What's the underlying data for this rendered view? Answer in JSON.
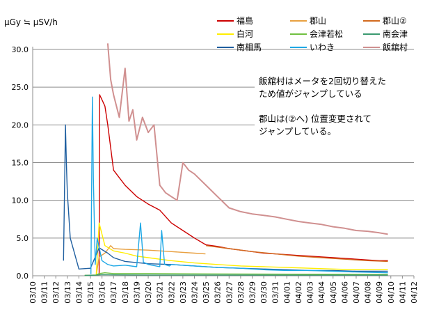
{
  "chart_data": {
    "type": "line",
    "ylabel": "μGy ≒ μSV/h",
    "ylim": [
      0,
      30
    ],
    "yticks": [
      "0.0",
      "5.0",
      "10.0",
      "15.0",
      "20.0",
      "25.0",
      "30.0"
    ],
    "xlim": [
      "2011-03-10",
      "2011-04-12"
    ],
    "xticks": [
      "03/10",
      "03/11",
      "03/12",
      "03/13",
      "03/14",
      "03/15",
      "03/16",
      "03/17",
      "03/18",
      "03/19",
      "03/20",
      "03/21",
      "03/22",
      "03/23",
      "03/24",
      "03/25",
      "03/26",
      "03/27",
      "03/28",
      "03/29",
      "03/30",
      "03/31",
      "04/01",
      "04/02",
      "04/03",
      "04/04",
      "04/05",
      "04/06",
      "04/07",
      "04/08",
      "04/09",
      "04/10",
      "04/11",
      "04/12"
    ],
    "grid": "horizontal",
    "legend_position": "top-right",
    "annotation": [
      "飯舘村はメータを2回切り替えた",
      "ため値がジャンプしている",
      "",
      "郡山は(②へ) 位置変更されて",
      "ジャンプしている。"
    ],
    "series": [
      {
        "name": "福島",
        "color": "#cc0000",
        "x": [
          "2011-03-15 18:00",
          "2011-03-15 19:00",
          "2011-03-16 06:00",
          "2011-03-16 12:00",
          "2011-03-17 00:00",
          "2011-03-17 12:00",
          "2011-03-18 00:00",
          "2011-03-19 00:00",
          "2011-03-20 00:00",
          "2011-03-21 00:00",
          "2011-03-22 00:00",
          "2011-03-23 00:00",
          "2011-03-24 00:00",
          "2011-03-25 00:00",
          "2011-03-26 00:00",
          "2011-03-27 00:00",
          "2011-03-28 00:00",
          "2011-03-29 00:00",
          "2011-03-30 00:00",
          "2011-03-31 00:00",
          "2011-04-01 00:00",
          "2011-04-02 00:00",
          "2011-04-03 00:00",
          "2011-04-04 00:00",
          "2011-04-05 00:00",
          "2011-04-06 00:00",
          "2011-04-07 00:00",
          "2011-04-08 00:00",
          "2011-04-09 00:00",
          "2011-04-09 18:00"
        ],
        "y": [
          0.1,
          24.0,
          22.5,
          20.0,
          14.0,
          13.0,
          12.0,
          10.5,
          9.5,
          8.7,
          7.0,
          6.0,
          5.0,
          4.1,
          3.9,
          3.6,
          3.4,
          3.2,
          3.0,
          2.9,
          2.8,
          2.7,
          2.6,
          2.5,
          2.4,
          2.3,
          2.2,
          2.1,
          2.0,
          2.0
        ]
      },
      {
        "name": "郡山",
        "color": "#e8a040",
        "x": [
          "2011-03-15 12:00",
          "2011-03-15 18:00",
          "2011-03-16 06:00",
          "2011-03-16 18:00",
          "2011-03-17 00:00",
          "2011-03-18 00:00",
          "2011-03-20 00:00",
          "2011-03-22 00:00",
          "2011-03-24 00:00",
          "2011-03-24 23:00"
        ],
        "y": [
          0.05,
          2.5,
          3.0,
          4.0,
          3.6,
          3.5,
          3.4,
          3.2,
          3.0,
          2.9
        ]
      },
      {
        "name": "郡山②",
        "color": "#d26a1e",
        "x": [
          "2011-03-25 00:00",
          "2011-03-27 00:00",
          "2011-03-29 00:00",
          "2011-03-31 00:00",
          "2011-04-02 00:00",
          "2011-04-04 00:00",
          "2011-04-06 00:00",
          "2011-04-08 00:00",
          "2011-04-09 18:00"
        ],
        "y": [
          4.0,
          3.6,
          3.2,
          2.9,
          2.6,
          2.4,
          2.2,
          2.0,
          1.9
        ]
      },
      {
        "name": "白河",
        "color": "#ffee00",
        "x": [
          "2011-03-14 12:00",
          "2011-03-15 12:00",
          "2011-03-15 18:00",
          "2011-03-16 06:00",
          "2011-03-17 00:00",
          "2011-03-18 00:00",
          "2011-03-19 00:00",
          "2011-03-20 00:00",
          "2011-03-21 00:00",
          "2011-03-22 00:00",
          "2011-03-24 00:00",
          "2011-03-26 00:00",
          "2011-03-28 00:00",
          "2011-03-30 00:00",
          "2011-04-01 00:00",
          "2011-04-03 00:00",
          "2011-04-05 00:00",
          "2011-04-07 00:00",
          "2011-04-09 18:00"
        ],
        "y": [
          0.05,
          0.1,
          7.0,
          4.0,
          3.3,
          3.0,
          2.6,
          2.4,
          2.2,
          2.0,
          1.7,
          1.5,
          1.3,
          1.2,
          1.1,
          1.0,
          0.9,
          0.8,
          0.8
        ]
      },
      {
        "name": "会津若松",
        "color": "#70c040",
        "x": [
          "2011-03-14 12:00",
          "2011-03-15 12:00",
          "2011-03-15 18:00",
          "2011-03-16 06:00",
          "2011-03-17 00:00",
          "2011-03-20 00:00",
          "2011-03-25 00:00",
          "2011-03-30 00:00",
          "2011-04-04 00:00",
          "2011-04-09 18:00"
        ],
        "y": [
          0.05,
          0.1,
          0.3,
          0.4,
          0.3,
          0.3,
          0.25,
          0.22,
          0.2,
          0.18
        ]
      },
      {
        "name": "南会津",
        "color": "#3a9a70",
        "x": [
          "2011-03-14 12:00",
          "2011-03-15 12:00",
          "2011-03-16 00:00",
          "2011-03-17 00:00",
          "2011-03-20 00:00",
          "2011-03-25 00:00",
          "2011-03-30 00:00",
          "2011-04-04 00:00",
          "2011-04-09 18:00"
        ],
        "y": [
          0.05,
          0.08,
          0.15,
          0.12,
          0.1,
          0.1,
          0.09,
          0.08,
          0.08
        ]
      },
      {
        "name": "南相馬",
        "color": "#1f5fa0",
        "x": [
          "2011-03-12 16:00",
          "2011-03-12 20:00",
          "2011-03-12 22:00",
          "2011-03-13 00:00",
          "2011-03-13 06:00",
          "2011-03-14 00:00",
          "2011-03-15 00:00",
          "2011-03-15 18:00",
          "2011-03-16 12:00",
          "2011-03-17 00:00",
          "2011-03-18 00:00",
          "2011-03-20 00:00",
          "2011-03-22 00:00",
          "2011-03-24 00:00",
          "2011-03-26 00:00",
          "2011-03-28 00:00",
          "2011-03-30 00:00",
          "2011-04-01 00:00",
          "2011-04-03 00:00",
          "2011-04-05 00:00",
          "2011-04-07 00:00",
          "2011-04-09 18:00"
        ],
        "y": [
          2.0,
          20.0,
          15.0,
          11.0,
          5.0,
          0.9,
          1.0,
          3.7,
          3.0,
          2.4,
          1.9,
          1.6,
          1.5,
          1.3,
          1.1,
          1.0,
          0.9,
          0.8,
          0.7,
          0.7,
          0.6,
          0.6
        ]
      },
      {
        "name": "いわき",
        "color": "#1ea8e6",
        "x": [
          "2011-03-15 01:00",
          "2011-03-15 04:00",
          "2011-03-15 06:00",
          "2011-03-15 10:00",
          "2011-03-15 14:00",
          "2011-03-16 00:00",
          "2011-03-16 12:00",
          "2011-03-17 00:00",
          "2011-03-18 00:00",
          "2011-03-19 00:00",
          "2011-03-19 08:00",
          "2011-03-19 14:00",
          "2011-03-20 00:00",
          "2011-03-21 00:00",
          "2011-03-21 04:00",
          "2011-03-21 10:00",
          "2011-03-21 20:00",
          "2011-03-22 00:00",
          "2011-03-24 00:00",
          "2011-03-26 00:00",
          "2011-03-28 00:00",
          "2011-03-30 00:00",
          "2011-04-01 00:00",
          "2011-04-03 00:00",
          "2011-04-05 00:00",
          "2011-04-07 00:00",
          "2011-04-09 18:00"
        ],
        "y": [
          0.2,
          23.7,
          13.0,
          1.5,
          5.0,
          2.0,
          1.5,
          1.3,
          1.4,
          1.2,
          7.0,
          1.8,
          1.5,
          1.2,
          6.0,
          1.5,
          1.3,
          1.5,
          1.3,
          1.1,
          1.0,
          0.8,
          0.7,
          0.7,
          0.6,
          0.5,
          0.4
        ]
      },
      {
        "name": "飯舘村",
        "color": "#d09090",
        "x": [
          "2011-03-16 12:00",
          "2011-03-16 18:00",
          "2011-03-17 00:00",
          "2011-03-17 12:00",
          "2011-03-18 00:00",
          "2011-03-18 08:00",
          "2011-03-18 16:00",
          "2011-03-19 00:00",
          "2011-03-19 12:00",
          "2011-03-20 00:00",
          "2011-03-20 12:00",
          "2011-03-21 00:00",
          "2011-03-21 12:00",
          "2011-03-22 00:00",
          "2011-03-22 12:00",
          "2011-03-23 00:00",
          "2011-03-23 12:00",
          "2011-03-24 00:00",
          "2011-03-25 00:00",
          "2011-03-26 00:00",
          "2011-03-27 00:00",
          "2011-03-28 00:00",
          "2011-03-29 00:00",
          "2011-03-30 00:00",
          "2011-03-31 00:00",
          "2011-04-01 00:00",
          "2011-04-02 00:00",
          "2011-04-03 00:00",
          "2011-04-04 00:00",
          "2011-04-05 00:00",
          "2011-04-06 00:00",
          "2011-04-07 00:00",
          "2011-04-08 00:00",
          "2011-04-09 00:00",
          "2011-04-09 18:00"
        ],
        "y": [
          30.8,
          26.0,
          24.0,
          21.0,
          27.5,
          20.5,
          22.0,
          18.0,
          21.0,
          19.0,
          20.0,
          12.0,
          11.0,
          10.5,
          10.0,
          15.0,
          14.0,
          13.5,
          12.0,
          10.5,
          9.0,
          8.5,
          8.2,
          8.0,
          7.8,
          7.5,
          7.2,
          7.0,
          6.8,
          6.5,
          6.3,
          6.0,
          5.9,
          5.7,
          5.5
        ]
      }
    ]
  }
}
